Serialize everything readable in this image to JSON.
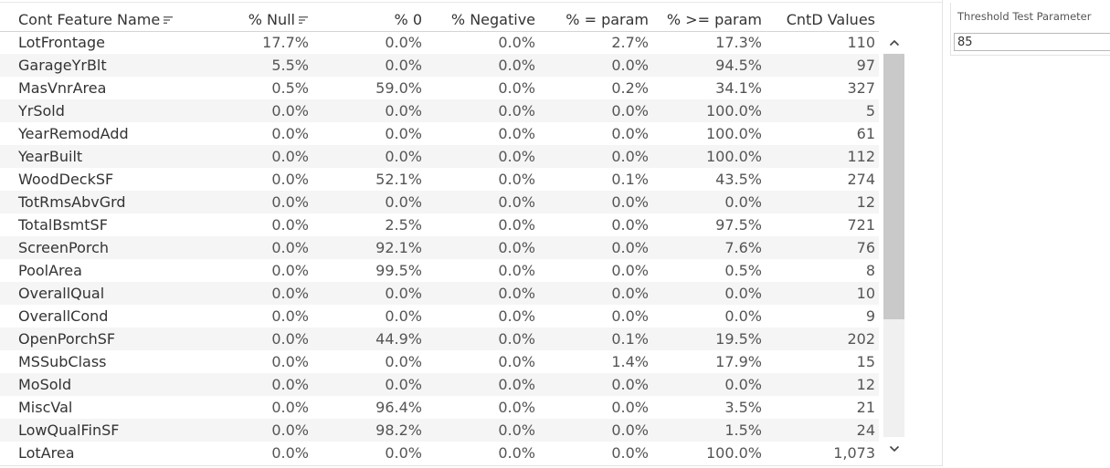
{
  "table": {
    "headers": {
      "name": "Cont Feature Name",
      "null": "% Null",
      "zero": "% 0",
      "negative": "% Negative",
      "eq_param": "% = param",
      "ge_param": "% >= param",
      "cntd": "CntD Values"
    },
    "rows": [
      {
        "name": "LotFrontage",
        "null": "17.7%",
        "zero": "0.0%",
        "negative": "0.0%",
        "eq_param": "2.7%",
        "ge_param": "17.3%",
        "cntd": "110"
      },
      {
        "name": "GarageYrBlt",
        "null": "5.5%",
        "zero": "0.0%",
        "negative": "0.0%",
        "eq_param": "0.0%",
        "ge_param": "94.5%",
        "cntd": "97"
      },
      {
        "name": "MasVnrArea",
        "null": "0.5%",
        "zero": "59.0%",
        "negative": "0.0%",
        "eq_param": "0.2%",
        "ge_param": "34.1%",
        "cntd": "327"
      },
      {
        "name": "YrSold",
        "null": "0.0%",
        "zero": "0.0%",
        "negative": "0.0%",
        "eq_param": "0.0%",
        "ge_param": "100.0%",
        "cntd": "5"
      },
      {
        "name": "YearRemodAdd",
        "null": "0.0%",
        "zero": "0.0%",
        "negative": "0.0%",
        "eq_param": "0.0%",
        "ge_param": "100.0%",
        "cntd": "61"
      },
      {
        "name": "YearBuilt",
        "null": "0.0%",
        "zero": "0.0%",
        "negative": "0.0%",
        "eq_param": "0.0%",
        "ge_param": "100.0%",
        "cntd": "112"
      },
      {
        "name": "WoodDeckSF",
        "null": "0.0%",
        "zero": "52.1%",
        "negative": "0.0%",
        "eq_param": "0.1%",
        "ge_param": "43.5%",
        "cntd": "274"
      },
      {
        "name": "TotRmsAbvGrd",
        "null": "0.0%",
        "zero": "0.0%",
        "negative": "0.0%",
        "eq_param": "0.0%",
        "ge_param": "0.0%",
        "cntd": "12"
      },
      {
        "name": "TotalBsmtSF",
        "null": "0.0%",
        "zero": "2.5%",
        "negative": "0.0%",
        "eq_param": "0.0%",
        "ge_param": "97.5%",
        "cntd": "721"
      },
      {
        "name": "ScreenPorch",
        "null": "0.0%",
        "zero": "92.1%",
        "negative": "0.0%",
        "eq_param": "0.0%",
        "ge_param": "7.6%",
        "cntd": "76"
      },
      {
        "name": "PoolArea",
        "null": "0.0%",
        "zero": "99.5%",
        "negative": "0.0%",
        "eq_param": "0.0%",
        "ge_param": "0.5%",
        "cntd": "8"
      },
      {
        "name": "OverallQual",
        "null": "0.0%",
        "zero": "0.0%",
        "negative": "0.0%",
        "eq_param": "0.0%",
        "ge_param": "0.0%",
        "cntd": "10"
      },
      {
        "name": "OverallCond",
        "null": "0.0%",
        "zero": "0.0%",
        "negative": "0.0%",
        "eq_param": "0.0%",
        "ge_param": "0.0%",
        "cntd": "9"
      },
      {
        "name": "OpenPorchSF",
        "null": "0.0%",
        "zero": "44.9%",
        "negative": "0.0%",
        "eq_param": "0.1%",
        "ge_param": "19.5%",
        "cntd": "202"
      },
      {
        "name": "MSSubClass",
        "null": "0.0%",
        "zero": "0.0%",
        "negative": "0.0%",
        "eq_param": "1.4%",
        "ge_param": "17.9%",
        "cntd": "15"
      },
      {
        "name": "MoSold",
        "null": "0.0%",
        "zero": "0.0%",
        "negative": "0.0%",
        "eq_param": "0.0%",
        "ge_param": "0.0%",
        "cntd": "12"
      },
      {
        "name": "MiscVal",
        "null": "0.0%",
        "zero": "96.4%",
        "negative": "0.0%",
        "eq_param": "0.0%",
        "ge_param": "3.5%",
        "cntd": "21"
      },
      {
        "name": "LowQualFinSF",
        "null": "0.0%",
        "zero": "98.2%",
        "negative": "0.0%",
        "eq_param": "0.0%",
        "ge_param": "1.5%",
        "cntd": "24"
      },
      {
        "name": "LotArea",
        "null": "0.0%",
        "zero": "0.0%",
        "negative": "0.0%",
        "eq_param": "0.0%",
        "ge_param": "100.0%",
        "cntd": "1,073"
      }
    ]
  },
  "icons": {
    "sort": "sort-descending-icon",
    "scroll_up": "chevron-up-icon",
    "scroll_down": "chevron-down-icon"
  },
  "parameter": {
    "title": "Threshold Test Parameter",
    "value": "85"
  },
  "colors": {
    "row_band": "#f5f5f5",
    "text": "#333333",
    "scroll_thumb": "#c9c9c9"
  }
}
